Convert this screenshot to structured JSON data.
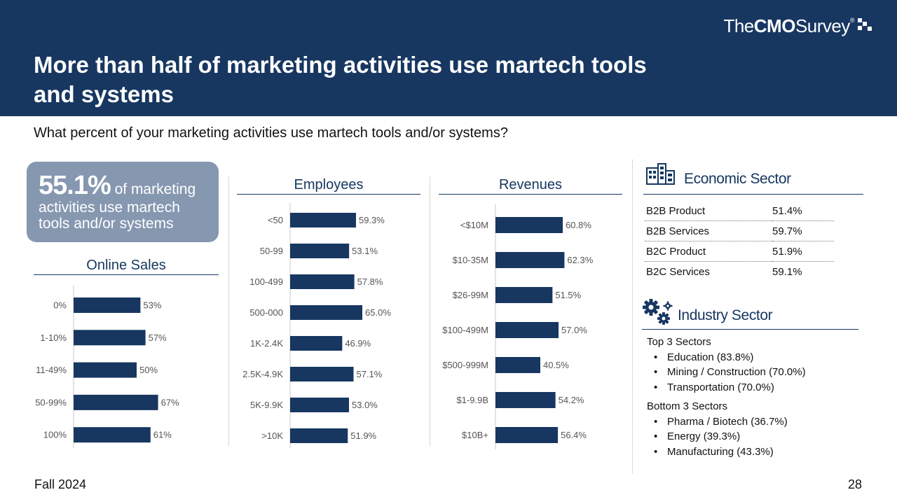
{
  "header": {
    "title": "More than half of marketing activities use martech tools and systems",
    "logo": {
      "the": "The",
      "cmo": "CMO",
      "survey": "Survey",
      "reg": "®"
    }
  },
  "question": "What percent of your marketing activities use martech tools and/or systems?",
  "hero": {
    "percent": "55.1%",
    "text_inline": "of marketing",
    "text_rest": "activities use martech tools and/or systems"
  },
  "colors": {
    "header_bg": "#173761",
    "bar": "#173761",
    "hero_bg": "#8697b0",
    "axis": "#c8c8c8"
  },
  "chart_data": [
    {
      "type": "bar",
      "title": "Online Sales",
      "orientation": "horizontal",
      "categories": [
        "0%",
        "1-10%",
        "11-49%",
        "50-99%",
        "100%"
      ],
      "values": [
        53,
        57,
        50,
        67,
        61
      ],
      "labels": [
        "53%",
        "57%",
        "50%",
        "67%",
        "61%"
      ],
      "xlim": [
        0,
        100
      ]
    },
    {
      "type": "bar",
      "title": "Employees",
      "orientation": "horizontal",
      "categories": [
        "<50",
        "50-99",
        "100-499",
        "500-000",
        "1K-2.4K",
        "2.5K-4.9K",
        "5K-9.9K",
        ">10K"
      ],
      "values": [
        59.3,
        53.1,
        57.8,
        65.0,
        46.9,
        57.1,
        53.0,
        51.9
      ],
      "labels": [
        "59.3%",
        "53.1%",
        "57.8%",
        "65.0%",
        "46.9%",
        "57.1%",
        "53.0%",
        "51.9%"
      ],
      "xlim": [
        0,
        100
      ]
    },
    {
      "type": "bar",
      "title": "Revenues",
      "orientation": "horizontal",
      "categories": [
        "<$10M",
        "$10-35M",
        "$26-99M",
        "$100-499M",
        "$500-999M",
        "$1-9.9B",
        "$10B+"
      ],
      "values": [
        60.8,
        62.3,
        51.5,
        57.0,
        40.5,
        54.2,
        56.4
      ],
      "labels": [
        "60.8%",
        "62.3%",
        "51.5%",
        "57.0%",
        "40.5%",
        "54.2%",
        "56.4%"
      ],
      "xlim": [
        0,
        100
      ]
    }
  ],
  "economic_sector": {
    "title": "Economic Sector",
    "icon": "buildings-icon",
    "rows": [
      {
        "name": "B2B Product",
        "value": "51.4%"
      },
      {
        "name": "B2B Services",
        "value": "59.7%"
      },
      {
        "name": "B2C Product",
        "value": "51.9%"
      },
      {
        "name": "B2C Services",
        "value": "59.1%"
      }
    ]
  },
  "industry_sector": {
    "title": "Industry Sector",
    "icon": "gears-icon",
    "top_heading": "Top 3 Sectors",
    "top": [
      "Education (83.8%)",
      "Mining / Construction (70.0%)",
      "Transportation (70.0%)"
    ],
    "bottom_heading": "Bottom 3 Sectors",
    "bottom": [
      "Pharma / Biotech (36.7%)",
      "Energy (39.3%)",
      "Manufacturing (43.3%)"
    ]
  },
  "footer": {
    "date": "Fall 2024",
    "page": "28"
  }
}
